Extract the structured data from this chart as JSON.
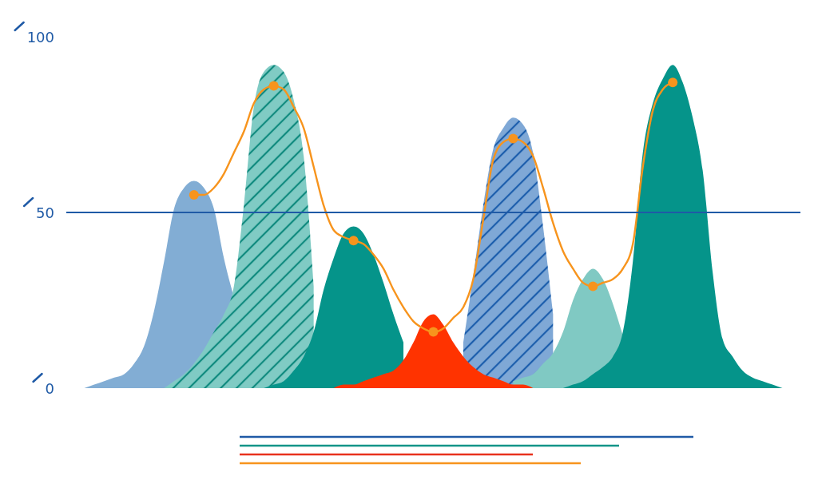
{
  "chart_data": {
    "type": "area",
    "tick_labels": "y",
    "ylim": [
      0,
      100
    ],
    "yticks": [
      0,
      50,
      100
    ],
    "categories": [
      null,
      null,
      null,
      null,
      null,
      null,
      null,
      null,
      null,
      null,
      null,
      null,
      null,
      null,
      null,
      null,
      null,
      null,
      null,
      null,
      null,
      null,
      null,
      null,
      null,
      null,
      null,
      null,
      null,
      null,
      null,
      null,
      null,
      null,
      null,
      null,
      null,
      null,
      null,
      null,
      null,
      null,
      null,
      null,
      null,
      null,
      null,
      null,
      null,
      null,
      null,
      null,
      null,
      null,
      null,
      null,
      null,
      null,
      null,
      null,
      null,
      null,
      null,
      null,
      null,
      null,
      null,
      null,
      null,
      null,
      null,
      null,
      null
    ],
    "ref_lines": [
      {
        "axis": "y",
        "value": 50,
        "color": "#1f5aa6"
      }
    ],
    "series": [
      {
        "color": "#82add4",
        "values": [
          null,
          0,
          1,
          2,
          3,
          4,
          7,
          12,
          22,
          36,
          51,
          57,
          59,
          57,
          51,
          37,
          26,
          null,
          null,
          null,
          null,
          null,
          null,
          null,
          null,
          null,
          null,
          null,
          null,
          null,
          null,
          null,
          null,
          null,
          null,
          null,
          null,
          null,
          null,
          null,
          null,
          null,
          null,
          null,
          null,
          null,
          null,
          null,
          null,
          null,
          null,
          null,
          null,
          null,
          null,
          null,
          null,
          null,
          null,
          null,
          null,
          null,
          null,
          null,
          null,
          null,
          null,
          null,
          null,
          null,
          null,
          null,
          null
        ]
      },
      {
        "color": "#80cbc4",
        "values": [
          null,
          null,
          null,
          null,
          null,
          null,
          null,
          null,
          null,
          0,
          2,
          4,
          7,
          11,
          16,
          21,
          29,
          52,
          80,
          90,
          92,
          90,
          82,
          66,
          29,
          null,
          null,
          null,
          null,
          null,
          null,
          null,
          null,
          null,
          null,
          null,
          null,
          null,
          null,
          null,
          null,
          null,
          null,
          null,
          null,
          null,
          null,
          null,
          null,
          null,
          null,
          null,
          null,
          null,
          null,
          null,
          null,
          null,
          null,
          null,
          null,
          null,
          null,
          null,
          null,
          null,
          null,
          null,
          null,
          null,
          null,
          null,
          null
        ]
      },
      {
        "color": "#05948a",
        "values": [
          null,
          null,
          null,
          null,
          null,
          null,
          null,
          null,
          null,
          null,
          null,
          null,
          null,
          null,
          null,
          null,
          null,
          null,
          null,
          0,
          1,
          2,
          5,
          9,
          16,
          28,
          37,
          44,
          46,
          44,
          38,
          30,
          21,
          13,
          null,
          null,
          null,
          null,
          null,
          null,
          null,
          null,
          null,
          null,
          null,
          null,
          null,
          null,
          null,
          null,
          null,
          null,
          null,
          null,
          null,
          null,
          null,
          null,
          null,
          null,
          null,
          null,
          null,
          null,
          null,
          null,
          null,
          null,
          null,
          null,
          null,
          null,
          null
        ]
      },
      {
        "color": "#7fa8d6",
        "values": [
          null,
          null,
          null,
          null,
          null,
          null,
          null,
          null,
          null,
          null,
          null,
          null,
          null,
          null,
          null,
          null,
          null,
          null,
          null,
          null,
          null,
          null,
          null,
          null,
          null,
          null,
          null,
          null,
          null,
          null,
          null,
          null,
          null,
          null,
          null,
          null,
          null,
          null,
          null,
          13,
          32,
          52,
          68,
          74,
          77,
          75,
          67,
          46,
          21,
          null,
          null,
          null,
          null,
          null,
          null,
          null,
          null,
          null,
          null,
          null,
          null,
          null,
          null,
          null,
          null,
          null,
          null,
          null,
          null,
          null,
          null,
          null,
          null
        ]
      },
      {
        "color": "#80c9c3",
        "values": [
          null,
          null,
          null,
          null,
          null,
          null,
          null,
          null,
          null,
          null,
          null,
          null,
          null,
          null,
          null,
          null,
          null,
          null,
          null,
          null,
          null,
          null,
          null,
          null,
          null,
          null,
          null,
          null,
          null,
          null,
          null,
          null,
          null,
          null,
          null,
          null,
          null,
          null,
          null,
          null,
          null,
          null,
          null,
          null,
          2,
          3,
          4,
          7,
          10,
          16,
          25,
          31,
          34,
          31,
          24,
          15,
          null,
          null,
          null,
          null,
          null,
          null,
          null,
          null,
          null,
          null,
          null,
          null,
          null,
          null,
          null,
          null,
          null
        ]
      },
      {
        "color": "#05948a",
        "values": [
          null,
          null,
          null,
          null,
          null,
          null,
          null,
          null,
          null,
          null,
          null,
          null,
          null,
          null,
          null,
          null,
          null,
          null,
          null,
          null,
          null,
          null,
          null,
          null,
          null,
          null,
          null,
          null,
          null,
          null,
          null,
          null,
          null,
          null,
          null,
          null,
          null,
          null,
          null,
          null,
          null,
          null,
          null,
          null,
          null,
          null,
          null,
          null,
          null,
          0,
          1,
          2,
          4,
          6,
          9,
          16,
          36,
          67,
          81,
          88,
          92,
          87,
          77,
          62,
          33,
          14,
          9,
          5,
          3,
          2,
          1,
          0,
          null
        ]
      },
      {
        "color": "#ff3300",
        "values": [
          null,
          null,
          null,
          null,
          null,
          null,
          null,
          null,
          null,
          null,
          null,
          null,
          null,
          null,
          null,
          null,
          null,
          null,
          null,
          null,
          null,
          null,
          null,
          null,
          null,
          null,
          0,
          1,
          1,
          2,
          3,
          4,
          5,
          8,
          13,
          19,
          21,
          18,
          13,
          9,
          6,
          4,
          3,
          2,
          1,
          1,
          0,
          null,
          null,
          null,
          null,
          null,
          null,
          null,
          null,
          null,
          null,
          null,
          null,
          null,
          null,
          null,
          null,
          null,
          null,
          null,
          null,
          null,
          null,
          null,
          null,
          null,
          null
        ]
      },
      {
        "type": "line",
        "color": "#f7941d",
        "values": [
          null,
          null,
          null,
          null,
          null,
          null,
          null,
          null,
          null,
          null,
          null,
          null,
          55,
          55,
          57,
          61,
          67,
          73,
          81,
          85,
          86,
          85,
          80,
          74,
          63,
          52,
          45,
          43,
          42,
          41,
          38,
          34,
          28,
          23,
          19,
          17,
          16,
          17,
          20,
          23,
          31,
          48,
          65,
          70,
          71,
          70,
          66,
          57,
          47,
          39,
          34,
          30,
          29,
          30,
          31,
          34,
          41,
          63,
          79,
          85,
          87,
          null,
          null,
          null,
          null,
          null,
          null,
          null,
          null,
          null,
          null,
          null,
          null
        ]
      },
      {
        "type": "scatter",
        "color": "#f7941d",
        "values": [
          null,
          null,
          null,
          null,
          null,
          null,
          null,
          null,
          null,
          null,
          null,
          null,
          55,
          null,
          null,
          null,
          null,
          null,
          null,
          null,
          86,
          null,
          null,
          null,
          null,
          null,
          null,
          null,
          42,
          null,
          null,
          null,
          null,
          null,
          null,
          null,
          16,
          null,
          null,
          null,
          null,
          null,
          null,
          null,
          71,
          null,
          null,
          null,
          null,
          null,
          null,
          null,
          29,
          null,
          null,
          null,
          null,
          null,
          null,
          null,
          87,
          null,
          null,
          null,
          null,
          null,
          null,
          null,
          null,
          null,
          null,
          null,
          null
        ]
      }
    ]
  }
}
